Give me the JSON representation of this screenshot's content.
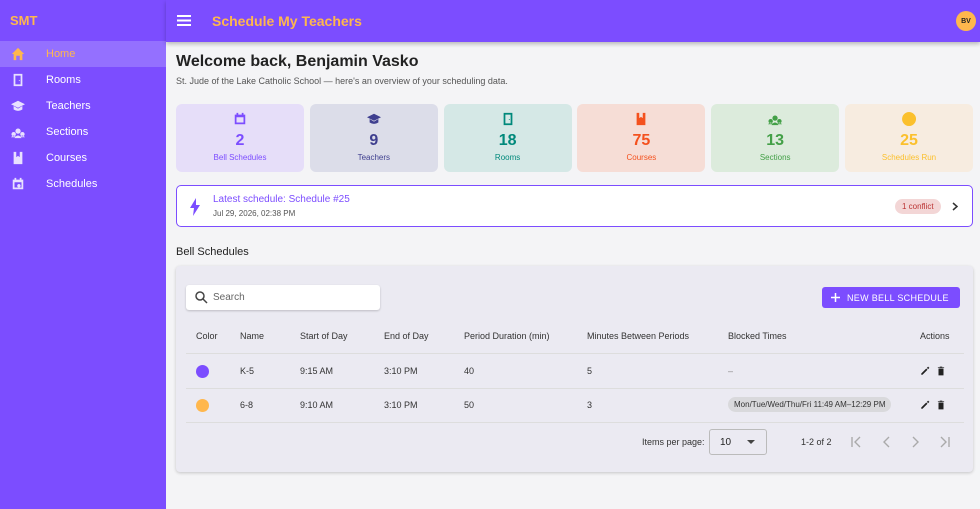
{
  "sidebar": {
    "brand": "SMT",
    "nav": [
      "Home",
      "Rooms",
      "Teachers",
      "Sections",
      "Courses",
      "Schedules"
    ],
    "active": 0
  },
  "header": {
    "title": "Schedule My Teachers",
    "avatar": "BV"
  },
  "welcome": {
    "title": "Welcome back, Benjamin Vasko",
    "subtitle": "St. Jude of the Lake Catholic School — here's an overview of your scheduling data."
  },
  "stats": [
    {
      "value": 2,
      "label": "Bell Schedules",
      "color": "#7c4dff",
      "background": "#e6def9"
    },
    {
      "value": 9,
      "label": "Teachers",
      "color": "#3f3f8f",
      "background": "#dcdde9"
    },
    {
      "value": 18,
      "label": "Rooms",
      "color": "#00897b",
      "background": "#d5e8e6"
    },
    {
      "value": 75,
      "label": "Courses",
      "color": "#f4511e",
      "background": "#f6ddd6"
    },
    {
      "value": 13,
      "label": "Sections",
      "color": "#43a047",
      "background": "#dcebdc"
    },
    {
      "value": 25,
      "label": "Schedules Run",
      "color": "#fbc02d",
      "background": "#f7ece0"
    }
  ],
  "latest": {
    "title": "Latest schedule: Schedule #25",
    "date": "Jul 29, 2026, 02:38 PM",
    "badge": "1 conflict"
  },
  "section_title": "Bell Schedules",
  "table": {
    "search_placeholder": "Search",
    "new_button": "NEW BELL SCHEDULE",
    "columns": [
      "Color",
      "Name",
      "Start of Day",
      "End of Day",
      "Period Duration (min)",
      "Minutes Between Periods",
      "Blocked Times",
      "Actions"
    ],
    "rows": [
      {
        "color": "#7c4dff",
        "name": "K-5",
        "start": "9:15 AM",
        "end": "3:10 PM",
        "period": 40,
        "between": 5,
        "blocked": "–"
      },
      {
        "color": "#ffb74d",
        "name": "6-8",
        "start": "9:10 AM",
        "end": "3:10 PM",
        "period": 50,
        "between": 3,
        "blocked": "Mon/Tue/Wed/Thu/Fri 11:49 AM–12:29 PM"
      }
    ]
  },
  "pagination": {
    "label": "Items per page:",
    "page_size": 10,
    "range": "1-2 of 2"
  }
}
